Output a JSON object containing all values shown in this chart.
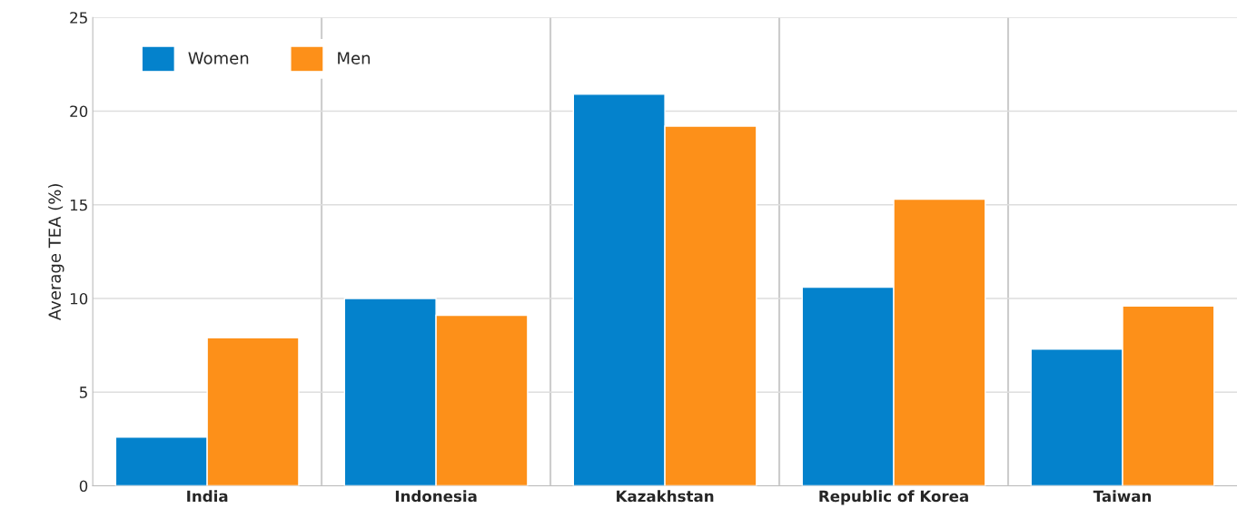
{
  "chart_data": {
    "type": "bar",
    "ylabel": "Average TEA (%)",
    "categories": [
      "India",
      "Indonesia",
      "Kazakhstan",
      "Republic of Korea",
      "Taiwan"
    ],
    "series": [
      {
        "name": "Women",
        "color": "#0482cc",
        "values": [
          2.6,
          10.0,
          20.9,
          10.6,
          7.3
        ]
      },
      {
        "name": "Men",
        "color": "#fd9019",
        "values": [
          7.9,
          9.1,
          19.2,
          15.3,
          9.6
        ]
      }
    ],
    "ylim": [
      0,
      25
    ],
    "yticks": [
      0,
      5,
      10,
      15,
      20,
      25
    ],
    "grid": true,
    "legend": "top left"
  }
}
